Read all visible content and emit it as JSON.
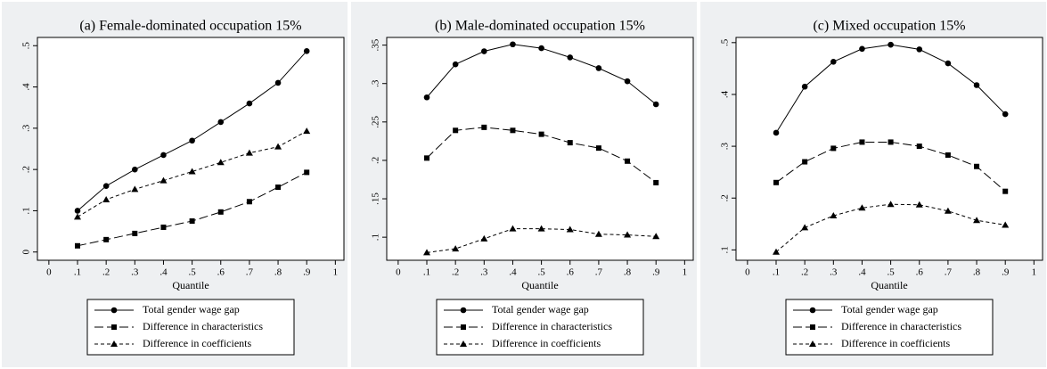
{
  "chart_data": [
    {
      "type": "line",
      "title": "(a) Female-dominated occupation 15%",
      "x_label": "Quantile",
      "x": [
        0.1,
        0.2,
        0.3,
        0.4,
        0.5,
        0.6,
        0.7,
        0.8,
        0.9
      ],
      "xlim": [
        -0.04,
        1.03
      ],
      "xticks": [
        0,
        {
          "value": 0.1,
          "label": ".1"
        },
        {
          "value": 0.2,
          "label": ".2"
        },
        {
          "value": 0.3,
          "label": ".3"
        },
        {
          "value": 0.4,
          "label": ".4"
        },
        {
          "value": 0.5,
          "label": ".5"
        },
        {
          "value": 0.6,
          "label": ".6"
        },
        {
          "value": 0.7,
          "label": ".7"
        },
        {
          "value": 0.8,
          "label": ".8"
        },
        {
          "value": 0.9,
          "label": ".9"
        },
        1
      ],
      "ylim": [
        -0.02,
        0.52
      ],
      "yticks": [
        0,
        {
          "value": 0.1,
          "label": ".1"
        },
        {
          "value": 0.2,
          "label": ".2"
        },
        {
          "value": 0.3,
          "label": ".3"
        },
        {
          "value": 0.4,
          "label": ".4"
        },
        {
          "value": 0.5,
          "label": ".5"
        }
      ],
      "series": [
        {
          "name": "Total gender wage gap",
          "color": "#000000",
          "dash": "solid",
          "marker": "circle",
          "values": [
            0.1,
            0.16,
            0.2,
            0.235,
            0.27,
            0.315,
            0.36,
            0.41,
            0.487
          ]
        },
        {
          "name": "Difference in characteristics",
          "color": "#000000",
          "dash": "longdash",
          "marker": "square",
          "values": [
            0.015,
            0.03,
            0.045,
            0.06,
            0.075,
            0.097,
            0.122,
            0.157,
            0.193
          ]
        },
        {
          "name": "Difference in coefficients",
          "color": "#000000",
          "dash": "shortdash",
          "marker": "triangle",
          "values": [
            0.085,
            0.127,
            0.152,
            0.173,
            0.195,
            0.217,
            0.24,
            0.255,
            0.293
          ]
        }
      ]
    },
    {
      "type": "line",
      "title": "(b) Male-dominated occupation 15%",
      "x_label": "Quantile",
      "x": [
        0.1,
        0.2,
        0.3,
        0.4,
        0.5,
        0.6,
        0.7,
        0.8,
        0.9
      ],
      "xlim": [
        -0.04,
        1.03
      ],
      "xticks": [
        0,
        {
          "value": 0.1,
          "label": ".1"
        },
        {
          "value": 0.2,
          "label": ".2"
        },
        {
          "value": 0.3,
          "label": ".3"
        },
        {
          "value": 0.4,
          "label": ".4"
        },
        {
          "value": 0.5,
          "label": ".5"
        },
        {
          "value": 0.6,
          "label": ".6"
        },
        {
          "value": 0.7,
          "label": ".7"
        },
        {
          "value": 0.8,
          "label": ".8"
        },
        {
          "value": 0.9,
          "label": ".9"
        },
        1
      ],
      "ylim": [
        0.07,
        0.36
      ],
      "yticks": [
        {
          "value": 0.1,
          "label": ".1"
        },
        {
          "value": 0.15,
          "label": ".15"
        },
        {
          "value": 0.2,
          "label": ".2"
        },
        {
          "value": 0.25,
          "label": ".25"
        },
        {
          "value": 0.3,
          "label": ".3"
        },
        {
          "value": 0.35,
          "label": ".35"
        }
      ],
      "series": [
        {
          "name": "Total gender wage gap",
          "color": "#000000",
          "dash": "solid",
          "marker": "circle",
          "values": [
            0.282,
            0.325,
            0.342,
            0.351,
            0.346,
            0.334,
            0.32,
            0.303,
            0.273
          ]
        },
        {
          "name": "Difference in characteristics",
          "color": "#000000",
          "dash": "longdash",
          "marker": "square",
          "values": [
            0.203,
            0.239,
            0.243,
            0.239,
            0.234,
            0.223,
            0.216,
            0.199,
            0.171
          ]
        },
        {
          "name": "Difference in coefficients",
          "color": "#000000",
          "dash": "shortdash",
          "marker": "triangle",
          "values": [
            0.08,
            0.085,
            0.098,
            0.111,
            0.111,
            0.11,
            0.104,
            0.103,
            0.101
          ]
        }
      ]
    },
    {
      "type": "line",
      "title": "(c) Mixed occupation 15%",
      "x_label": "Quantile",
      "x": [
        0.1,
        0.2,
        0.3,
        0.4,
        0.5,
        0.6,
        0.7,
        0.8,
        0.9
      ],
      "xlim": [
        -0.04,
        1.03
      ],
      "xticks": [
        0,
        {
          "value": 0.1,
          "label": ".1"
        },
        {
          "value": 0.2,
          "label": ".2"
        },
        {
          "value": 0.3,
          "label": ".3"
        },
        {
          "value": 0.4,
          "label": ".4"
        },
        {
          "value": 0.5,
          "label": ".5"
        },
        {
          "value": 0.6,
          "label": ".6"
        },
        {
          "value": 0.7,
          "label": ".7"
        },
        {
          "value": 0.8,
          "label": ".8"
        },
        {
          "value": 0.9,
          "label": ".9"
        },
        1
      ],
      "ylim": [
        0.08,
        0.51
      ],
      "yticks": [
        {
          "value": 0.1,
          "label": ".1"
        },
        {
          "value": 0.2,
          "label": ".2"
        },
        {
          "value": 0.3,
          "label": ".3"
        },
        {
          "value": 0.4,
          "label": ".4"
        },
        {
          "value": 0.5,
          "label": ".5"
        }
      ],
      "series": [
        {
          "name": "Total gender wage gap",
          "color": "#000000",
          "dash": "solid",
          "marker": "circle",
          "values": [
            0.326,
            0.415,
            0.463,
            0.488,
            0.496,
            0.487,
            0.46,
            0.418,
            0.362
          ]
        },
        {
          "name": "Difference in characteristics",
          "color": "#000000",
          "dash": "longdash",
          "marker": "square",
          "values": [
            0.23,
            0.27,
            0.296,
            0.308,
            0.308,
            0.3,
            0.283,
            0.261,
            0.213
          ]
        },
        {
          "name": "Difference in coefficients",
          "color": "#000000",
          "dash": "shortdash",
          "marker": "triangle",
          "values": [
            0.096,
            0.143,
            0.166,
            0.181,
            0.188,
            0.187,
            0.175,
            0.157,
            0.148
          ]
        }
      ]
    }
  ]
}
